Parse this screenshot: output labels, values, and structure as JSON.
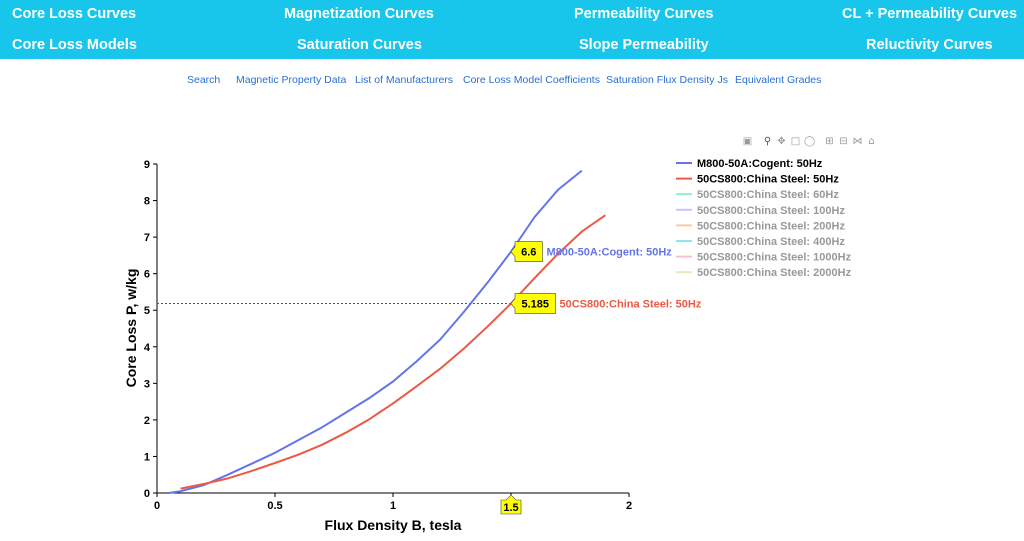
{
  "topnav": {
    "row1": [
      "Core Loss Curves",
      "Magnetization Curves",
      "Permeability Curves",
      "CL + Permeability Curves"
    ],
    "row2": [
      "Core Loss Models",
      "Saturation Curves",
      "Slope Permeability",
      "Reluctivity Curves"
    ]
  },
  "subnav": [
    "Search",
    "Magnetic Property Data",
    "List of Manufacturers",
    "Core Loss Model Coefficients",
    "Saturation Flux Density Js",
    "Equivalent Grades"
  ],
  "modebar": [
    "camera-icon",
    "zoom-icon",
    "pan-icon",
    "box-select-icon",
    "lasso-icon",
    "zoom-in-icon",
    "zoom-out-icon",
    "autoscale-icon",
    "reset-axes-icon"
  ],
  "chart_data": {
    "type": "line",
    "title": "",
    "xlabel": "Flux Density B, tesla",
    "ylabel": "Core Loss P, w/kg",
    "xlim": [
      0,
      2
    ],
    "ylim": [
      0,
      9
    ],
    "xticks": [
      0,
      0.5,
      1,
      1.5,
      2
    ],
    "xtick_labels": [
      "0",
      "0.5",
      "1",
      "1.5",
      "2"
    ],
    "yticks": [
      0,
      1,
      2,
      3,
      4,
      5,
      6,
      7,
      8,
      9
    ],
    "ytick_labels": [
      "0",
      "1",
      "2",
      "3",
      "4",
      "5",
      "6",
      "7",
      "8",
      "9"
    ],
    "grid": false,
    "legend_position": "right",
    "series": [
      {
        "name": "M800-50A:Cogent: 50Hz",
        "color": "#6474ea",
        "visible": true,
        "x": [
          0.05,
          0.1,
          0.2,
          0.3,
          0.4,
          0.5,
          0.6,
          0.7,
          0.8,
          0.9,
          1.0,
          1.1,
          1.2,
          1.3,
          1.4,
          1.5,
          1.6,
          1.7,
          1.8
        ],
        "y": [
          0.0,
          0.05,
          0.22,
          0.5,
          0.8,
          1.1,
          1.45,
          1.8,
          2.2,
          2.6,
          3.05,
          3.6,
          4.2,
          4.95,
          5.75,
          6.6,
          7.55,
          8.3,
          8.82
        ]
      },
      {
        "name": "50CS800:China Steel: 50Hz",
        "color": "#ea5a44",
        "visible": true,
        "x": [
          0.1,
          0.2,
          0.3,
          0.4,
          0.5,
          0.6,
          0.7,
          0.8,
          0.9,
          1.0,
          1.1,
          1.2,
          1.3,
          1.4,
          1.5,
          1.6,
          1.7,
          1.8,
          1.9
        ],
        "y": [
          0.12,
          0.25,
          0.4,
          0.6,
          0.82,
          1.05,
          1.32,
          1.65,
          2.02,
          2.45,
          2.92,
          3.4,
          3.95,
          4.55,
          5.185,
          5.88,
          6.55,
          7.15,
          7.6
        ]
      },
      {
        "name": "50CS800:China Steel: 60Hz",
        "color": "#3fd9a9",
        "visible": false
      },
      {
        "name": "50CS800:China Steel: 100Hz",
        "color": "#a98ef0",
        "visible": false
      },
      {
        "name": "50CS800:China Steel: 200Hz",
        "color": "#f5a05e",
        "visible": false
      },
      {
        "name": "50CS800:China Steel: 400Hz",
        "color": "#2fd2e4",
        "visible": false
      },
      {
        "name": "50CS800:China Steel: 1000Hz",
        "color": "#f08cbd",
        "visible": false
      },
      {
        "name": "50CS800:China Steel: 2000Hz",
        "color": "#bfe48a",
        "visible": false
      }
    ],
    "hover": {
      "x": 1.5,
      "x_label": "1.5",
      "spike_y": 5.185,
      "labels": [
        {
          "value": "6.6",
          "x": 1.5,
          "y": 6.6,
          "series": "M800-50A:Cogent: 50Hz",
          "color": "#6474ea"
        },
        {
          "value": "5.185",
          "x": 1.5,
          "y": 5.185,
          "series": "50CS800:China Steel: 50Hz",
          "color": "#ea5a44"
        }
      ]
    }
  }
}
